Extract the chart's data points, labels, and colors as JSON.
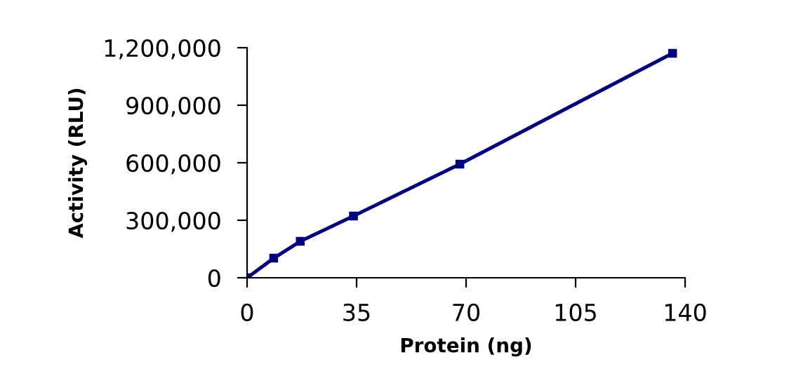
{
  "chart_data": {
    "type": "line",
    "xlabel": "Protein (ng)",
    "ylabel": "Activity (RLU)",
    "x": [
      0,
      8.5,
      17,
      34,
      68,
      136
    ],
    "series": [
      {
        "color": "#000080",
        "values": [
          0,
          102000,
          190000,
          322000,
          593000,
          1171000
        ]
      }
    ],
    "xlim": [
      0,
      140
    ],
    "xticks": [
      0,
      35,
      70,
      105,
      140
    ],
    "ylim": [
      0,
      1200000
    ],
    "yticks": [
      {
        "value": 0,
        "label": "0"
      },
      {
        "value": 300000,
        "label": "300,000"
      },
      {
        "value": 600000,
        "label": "600,000"
      },
      {
        "value": 900000,
        "label": "900,000"
      },
      {
        "value": 1200000,
        "label": "1,200,000"
      }
    ],
    "grid": false,
    "legend": false,
    "marker": "square",
    "line_style": "solid"
  }
}
